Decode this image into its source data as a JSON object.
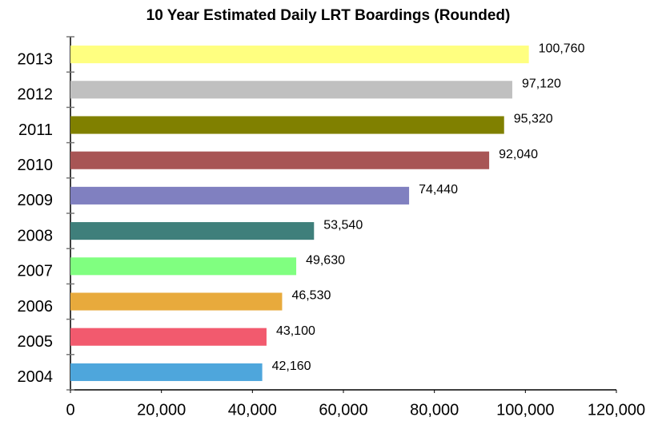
{
  "chart_data": {
    "type": "barh",
    "title": "10 Year Estimated Daily LRT Boardings (Rounded)",
    "categories": [
      "2004",
      "2005",
      "2006",
      "2007",
      "2008",
      "2009",
      "2010",
      "2011",
      "2012",
      "2013"
    ],
    "values": [
      42160,
      43100,
      46530,
      49630,
      53540,
      74440,
      92040,
      95320,
      97120,
      100760
    ],
    "value_labels": [
      "42,160",
      "43,100",
      "46,530",
      "49,630",
      "53,540",
      "74,440",
      "92,040",
      "95,320",
      "97,120",
      "100,760"
    ],
    "colors": [
      "#4ea6dc",
      "#f25a6e",
      "#e8aa3c",
      "#80ff80",
      "#3f7f7b",
      "#8080c0",
      "#a85555",
      "#808000",
      "#c0c0c0",
      "#ffff80"
    ],
    "xlim": [
      0,
      120000
    ],
    "xticks": [
      0,
      {
        "value": 20000,
        "label": "20,000"
      },
      {
        "value": 40000,
        "label": "40,000"
      },
      {
        "value": 60000,
        "label": "60,000"
      },
      {
        "value": 80000,
        "label": "80,000"
      },
      {
        "value": 100000,
        "label": "100,000"
      },
      {
        "value": 120000,
        "label": "120,000"
      }
    ],
    "grid": false
  }
}
